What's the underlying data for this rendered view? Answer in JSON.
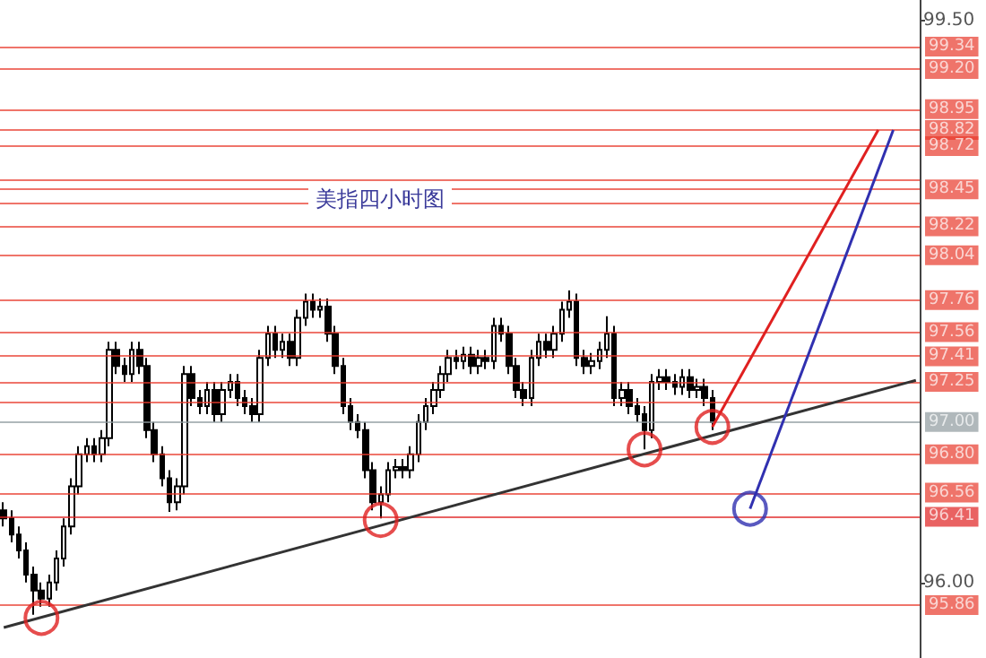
{
  "chart_data": {
    "type": "candlestick",
    "title": "美指四小时图",
    "categories": [
      null,
      null,
      null,
      null,
      null,
      null,
      null,
      null,
      null,
      null,
      null,
      null,
      null,
      null,
      null,
      null,
      null,
      null,
      null,
      null,
      null,
      null,
      null,
      null,
      null,
      null,
      null,
      null,
      null,
      null,
      null,
      null,
      null,
      null,
      null,
      null,
      null,
      null,
      null,
      null,
      null,
      null,
      null,
      null,
      null,
      null,
      null,
      null,
      null,
      null,
      null,
      null,
      null,
      null,
      null,
      null,
      null,
      null,
      null,
      null,
      null,
      null,
      null,
      null,
      null,
      null,
      null,
      null,
      null,
      null,
      null,
      null,
      null,
      null,
      null,
      null,
      null,
      null,
      null,
      null,
      null,
      null,
      null,
      null,
      null,
      null,
      null,
      null,
      null,
      null,
      null,
      null,
      null,
      null,
      null,
      null,
      null,
      null,
      null,
      null,
      null,
      null,
      null,
      null,
      null,
      null,
      null,
      null,
      null,
      null,
      null,
      null,
      null,
      null,
      null,
      null,
      null,
      null,
      null,
      null,
      null,
      null
    ],
    "ohlc": [
      [
        96.45,
        96.5,
        96.35,
        96.4
      ],
      [
        96.4,
        96.45,
        96.25,
        96.3
      ],
      [
        96.3,
        96.35,
        96.15,
        96.2
      ],
      [
        96.2,
        96.25,
        96.0,
        96.05
      ],
      [
        96.05,
        96.1,
        95.8,
        95.95
      ],
      [
        95.95,
        96.0,
        95.85,
        95.9
      ],
      [
        95.9,
        96.05,
        95.85,
        96.0
      ],
      [
        96.0,
        96.2,
        95.95,
        96.15
      ],
      [
        96.15,
        96.4,
        96.1,
        96.35
      ],
      [
        96.35,
        96.65,
        96.3,
        96.6
      ],
      [
        96.6,
        96.85,
        96.55,
        96.8
      ],
      [
        96.8,
        96.9,
        96.75,
        96.85
      ],
      [
        96.85,
        96.9,
        96.75,
        96.8
      ],
      [
        96.8,
        96.95,
        96.75,
        96.9
      ],
      [
        96.9,
        97.5,
        96.85,
        97.45
      ],
      [
        97.45,
        97.5,
        97.3,
        97.35
      ],
      [
        97.35,
        97.4,
        97.25,
        97.3
      ],
      [
        97.3,
        97.5,
        97.25,
        97.45
      ],
      [
        97.45,
        97.5,
        97.3,
        97.35
      ],
      [
        97.35,
        97.4,
        96.9,
        96.95
      ],
      [
        96.95,
        97.0,
        96.75,
        96.8
      ],
      [
        96.8,
        96.85,
        96.6,
        96.65
      ],
      [
        96.65,
        96.7,
        96.44,
        96.5
      ],
      [
        96.5,
        96.65,
        96.45,
        96.6
      ],
      [
        96.6,
        97.35,
        96.55,
        97.3
      ],
      [
        97.3,
        97.35,
        97.1,
        97.15
      ],
      [
        97.15,
        97.2,
        97.05,
        97.1
      ],
      [
        97.1,
        97.25,
        97.05,
        97.2
      ],
      [
        97.2,
        97.25,
        97.0,
        97.05
      ],
      [
        97.05,
        97.25,
        97.0,
        97.2
      ],
      [
        97.2,
        97.3,
        97.15,
        97.25
      ],
      [
        97.25,
        97.3,
        97.1,
        97.15
      ],
      [
        97.15,
        97.2,
        97.05,
        97.1
      ],
      [
        97.1,
        97.15,
        97.0,
        97.05
      ],
      [
        97.05,
        97.45,
        97.0,
        97.4
      ],
      [
        97.4,
        97.6,
        97.35,
        97.55
      ],
      [
        97.55,
        97.6,
        97.4,
        97.45
      ],
      [
        97.45,
        97.55,
        97.4,
        97.5
      ],
      [
        97.5,
        97.55,
        97.35,
        97.4
      ],
      [
        97.4,
        97.7,
        97.35,
        97.65
      ],
      [
        97.65,
        97.8,
        97.6,
        97.75
      ],
      [
        97.75,
        97.8,
        97.65,
        97.7
      ],
      [
        97.7,
        97.77,
        97.65,
        97.72
      ],
      [
        97.72,
        97.77,
        97.5,
        97.55
      ],
      [
        97.55,
        97.6,
        97.3,
        97.35
      ],
      [
        97.35,
        97.4,
        97.05,
        97.1
      ],
      [
        97.1,
        97.15,
        96.95,
        97.0
      ],
      [
        97.0,
        97.05,
        96.9,
        96.95
      ],
      [
        96.95,
        97.0,
        96.65,
        96.7
      ],
      [
        96.7,
        96.75,
        96.45,
        96.5
      ],
      [
        96.5,
        96.6,
        96.4,
        96.55
      ],
      [
        96.55,
        96.75,
        96.5,
        96.7
      ],
      [
        96.7,
        96.77,
        96.65,
        96.72
      ],
      [
        96.72,
        96.77,
        96.65,
        96.7
      ],
      [
        96.7,
        96.85,
        96.65,
        96.8
      ],
      [
        96.8,
        97.05,
        96.75,
        97.0
      ],
      [
        97.0,
        97.15,
        96.95,
        97.1
      ],
      [
        97.1,
        97.25,
        97.05,
        97.2
      ],
      [
        97.2,
        97.35,
        97.15,
        97.3
      ],
      [
        97.3,
        97.45,
        97.25,
        97.4
      ],
      [
        97.4,
        97.45,
        97.33,
        97.38
      ],
      [
        97.38,
        97.47,
        97.33,
        97.42
      ],
      [
        97.42,
        97.47,
        97.3,
        97.35
      ],
      [
        97.35,
        97.45,
        97.3,
        97.4
      ],
      [
        97.4,
        97.45,
        97.33,
        97.38
      ],
      [
        97.38,
        97.65,
        97.33,
        97.6
      ],
      [
        97.6,
        97.65,
        97.5,
        97.55
      ],
      [
        97.55,
        97.6,
        97.3,
        97.35
      ],
      [
        97.35,
        97.4,
        97.15,
        97.2
      ],
      [
        97.2,
        97.25,
        97.1,
        97.15
      ],
      [
        97.15,
        97.45,
        97.1,
        97.4
      ],
      [
        97.4,
        97.55,
        97.35,
        97.5
      ],
      [
        97.5,
        97.55,
        97.4,
        97.45
      ],
      [
        97.45,
        97.6,
        97.4,
        97.55
      ],
      [
        97.55,
        97.75,
        97.5,
        97.7
      ],
      [
        97.7,
        97.82,
        97.65,
        97.75
      ],
      [
        97.75,
        97.8,
        97.35,
        97.4
      ],
      [
        97.4,
        97.45,
        97.3,
        97.35
      ],
      [
        97.35,
        97.43,
        97.3,
        97.38
      ],
      [
        97.38,
        97.5,
        97.33,
        97.45
      ],
      [
        97.45,
        97.66,
        97.4,
        97.55
      ],
      [
        97.55,
        97.6,
        97.1,
        97.15
      ],
      [
        97.15,
        97.25,
        97.1,
        97.2
      ],
      [
        97.2,
        97.25,
        97.05,
        97.1
      ],
      [
        97.1,
        97.15,
        97.0,
        97.05
      ],
      [
        97.05,
        97.1,
        96.83,
        96.95
      ],
      [
        96.95,
        97.3,
        96.9,
        97.25
      ],
      [
        97.25,
        97.33,
        97.2,
        97.28
      ],
      [
        97.28,
        97.33,
        97.2,
        97.25
      ],
      [
        97.25,
        97.3,
        97.17,
        97.22
      ],
      [
        97.22,
        97.33,
        97.17,
        97.28
      ],
      [
        97.28,
        97.33,
        97.15,
        97.2
      ],
      [
        97.2,
        97.27,
        97.15,
        97.22
      ],
      [
        97.22,
        97.27,
        97.1,
        97.15
      ],
      [
        97.15,
        97.2,
        96.95,
        97.0
      ],
      null,
      null,
      null,
      null,
      null,
      null,
      null,
      null,
      null,
      null,
      null,
      null,
      null,
      null,
      null,
      null,
      null,
      null,
      null,
      null,
      null,
      null,
      null,
      null,
      null,
      null,
      null
    ],
    "series": [
      {
        "type": "line",
        "color": "#333333",
        "marker": "none",
        "values": [
          95.72,
          null,
          null,
          null,
          null,
          null,
          null,
          null,
          null,
          null,
          null,
          null,
          null,
          null,
          null,
          null,
          null,
          null,
          null,
          null,
          null,
          null,
          null,
          null,
          null,
          null,
          null,
          null,
          null,
          null,
          null,
          null,
          null,
          null,
          null,
          null,
          null,
          null,
          null,
          null,
          null,
          null,
          null,
          null,
          null,
          null,
          null,
          null,
          null,
          null,
          null,
          null,
          null,
          null,
          null,
          null,
          null,
          null,
          null,
          null,
          null,
          null,
          null,
          null,
          null,
          null,
          null,
          null,
          null,
          null,
          null,
          null,
          null,
          null,
          null,
          null,
          null,
          null,
          null,
          null,
          null,
          null,
          null,
          null,
          null,
          null,
          null,
          null,
          null,
          null,
          null,
          null,
          null,
          null,
          null,
          null,
          null,
          null,
          null,
          null,
          null,
          null,
          null,
          null,
          null,
          null,
          null,
          null,
          null,
          null,
          null,
          null,
          null,
          null,
          null,
          null,
          null,
          null,
          null,
          null,
          null,
          97.26
        ]
      },
      {
        "type": "line",
        "color": "#e02020",
        "marker": "none",
        "values": [
          null,
          null,
          null,
          null,
          null,
          null,
          null,
          null,
          null,
          null,
          null,
          null,
          null,
          null,
          null,
          null,
          null,
          null,
          null,
          null,
          null,
          null,
          null,
          null,
          null,
          null,
          null,
          null,
          null,
          null,
          null,
          null,
          null,
          null,
          null,
          null,
          null,
          null,
          null,
          null,
          null,
          null,
          null,
          null,
          null,
          null,
          null,
          null,
          null,
          null,
          null,
          null,
          null,
          null,
          null,
          null,
          null,
          null,
          null,
          null,
          null,
          null,
          null,
          null,
          null,
          null,
          null,
          null,
          null,
          null,
          null,
          null,
          null,
          null,
          null,
          null,
          null,
          null,
          null,
          null,
          null,
          null,
          null,
          null,
          null,
          null,
          null,
          null,
          null,
          null,
          null,
          null,
          null,
          null,
          96.97,
          null,
          null,
          null,
          null,
          null,
          null,
          null,
          null,
          null,
          null,
          null,
          null,
          null,
          null,
          null,
          null,
          null,
          null,
          null,
          null,
          null,
          98.82,
          null,
          null,
          null,
          null,
          null
        ]
      },
      {
        "type": "line",
        "color": "#3030b0",
        "marker": "none",
        "values": [
          null,
          null,
          null,
          null,
          null,
          null,
          null,
          null,
          null,
          null,
          null,
          null,
          null,
          null,
          null,
          null,
          null,
          null,
          null,
          null,
          null,
          null,
          null,
          null,
          null,
          null,
          null,
          null,
          null,
          null,
          null,
          null,
          null,
          null,
          null,
          null,
          null,
          null,
          null,
          null,
          null,
          null,
          null,
          null,
          null,
          null,
          null,
          null,
          null,
          null,
          null,
          null,
          null,
          null,
          null,
          null,
          null,
          null,
          null,
          null,
          null,
          null,
          null,
          null,
          null,
          null,
          null,
          null,
          null,
          null,
          null,
          null,
          null,
          null,
          null,
          null,
          null,
          null,
          null,
          null,
          null,
          null,
          null,
          null,
          null,
          null,
          null,
          null,
          null,
          null,
          null,
          null,
          null,
          null,
          null,
          null,
          null,
          null,
          null,
          96.46,
          null,
          null,
          null,
          null,
          null,
          null,
          null,
          null,
          null,
          null,
          null,
          null,
          null,
          null,
          null,
          null,
          null,
          null,
          98.82,
          null,
          null,
          null
        ]
      },
      {
        "type": "scatter",
        "color": "#e02020",
        "marker": "circle",
        "values": [
          null,
          null,
          null,
          null,
          null,
          95.78,
          null,
          null,
          null,
          null,
          null,
          null,
          null,
          null,
          null,
          null,
          null,
          null,
          null,
          null,
          null,
          null,
          null,
          null,
          null,
          null,
          null,
          null,
          null,
          null,
          null,
          null,
          null,
          null,
          null,
          null,
          null,
          null,
          null,
          null,
          null,
          null,
          null,
          null,
          null,
          null,
          null,
          null,
          null,
          null,
          96.39,
          null,
          null,
          null,
          null,
          null,
          null,
          null,
          null,
          null,
          null,
          null,
          null,
          null,
          null,
          null,
          null,
          null,
          null,
          null,
          null,
          null,
          null,
          null,
          null,
          null,
          null,
          null,
          null,
          null,
          null,
          null,
          null,
          null,
          null,
          96.83,
          null,
          null,
          null,
          null,
          null,
          null,
          null,
          null,
          96.97,
          null,
          null,
          null,
          null,
          null,
          null,
          null,
          null,
          null,
          null,
          null,
          null,
          null,
          null,
          null,
          null,
          null,
          null,
          null,
          null,
          null,
          null,
          null,
          null,
          null,
          null,
          null
        ]
      },
      {
        "type": "scatter",
        "color": "#3030b0",
        "marker": "circle",
        "values": [
          null,
          null,
          null,
          null,
          null,
          null,
          null,
          null,
          null,
          null,
          null,
          null,
          null,
          null,
          null,
          null,
          null,
          null,
          null,
          null,
          null,
          null,
          null,
          null,
          null,
          null,
          null,
          null,
          null,
          null,
          null,
          null,
          null,
          null,
          null,
          null,
          null,
          null,
          null,
          null,
          null,
          null,
          null,
          null,
          null,
          null,
          null,
          null,
          null,
          null,
          null,
          null,
          null,
          null,
          null,
          null,
          null,
          null,
          null,
          null,
          null,
          null,
          null,
          null,
          null,
          null,
          null,
          null,
          null,
          null,
          null,
          null,
          null,
          null,
          null,
          null,
          null,
          null,
          null,
          null,
          null,
          null,
          null,
          null,
          null,
          null,
          null,
          null,
          null,
          null,
          null,
          null,
          null,
          null,
          null,
          null,
          null,
          null,
          null,
          96.46,
          null,
          null,
          null,
          null,
          null,
          null,
          null,
          null,
          null,
          null,
          null,
          null,
          null,
          null,
          null,
          null,
          null,
          null,
          null,
          null,
          null,
          null
        ]
      }
    ],
    "ref_lines": [
      {
        "axis": "y",
        "value": 99.34,
        "label": "99.34",
        "color": "#e8392b"
      },
      {
        "axis": "y",
        "value": 99.2,
        "label": "99.20",
        "color": "#e8392b"
      },
      {
        "axis": "y",
        "value": 98.95,
        "label": "98.95",
        "color": "#e8392b"
      },
      {
        "axis": "y",
        "value": 98.82,
        "label": "98.82",
        "color": "#e8392b"
      },
      {
        "axis": "y",
        "value": 98.72,
        "label": "98.72",
        "color": "#e8392b"
      },
      {
        "axis": "y",
        "value": 98.51,
        "label": null,
        "color": "#e8392b"
      },
      {
        "axis": "y",
        "value": 98.45,
        "label": "98.45",
        "color": "#e8392b"
      },
      {
        "axis": "y",
        "value": 98.37,
        "label": null,
        "color": "#e8392b"
      },
      {
        "axis": "y",
        "value": 98.22,
        "label": "98.22",
        "color": "#e8392b"
      },
      {
        "axis": "y",
        "value": 98.04,
        "label": "98.04",
        "color": "#e8392b"
      },
      {
        "axis": "y",
        "value": 97.76,
        "label": "97.76",
        "color": "#e8392b"
      },
      {
        "axis": "y",
        "value": 97.56,
        "label": "97.56",
        "color": "#e8392b"
      },
      {
        "axis": "y",
        "value": 97.41,
        "label": "97.41",
        "color": "#e8392b"
      },
      {
        "axis": "y",
        "value": 97.25,
        "label": "97.25",
        "color": "#e8392b"
      },
      {
        "axis": "y",
        "value": 97.12,
        "label": null,
        "color": "#e8392b"
      },
      {
        "axis": "y",
        "value": 97.0,
        "label": "97.00",
        "color": "#8e9a9e"
      },
      {
        "axis": "y",
        "value": 96.8,
        "label": "96.80",
        "color": "#e8392b"
      },
      {
        "axis": "y",
        "value": 96.56,
        "label": "96.56",
        "color": "#e8392b"
      },
      {
        "axis": "y",
        "value": 96.41,
        "label": "96.41",
        "color": "#e02020"
      },
      {
        "axis": "y",
        "value": 95.86,
        "label": "95.86",
        "color": "#e8392b"
      }
    ],
    "ylim": [
      95.53,
      99.63
    ],
    "yticks": [
      {
        "value": 99.5,
        "label": "99.50"
      },
      {
        "value": 96.0,
        "label": "96.00"
      }
    ],
    "tick_labels": "y"
  }
}
